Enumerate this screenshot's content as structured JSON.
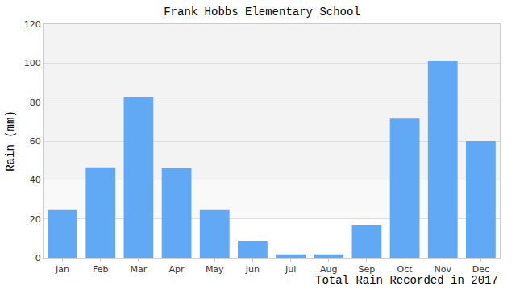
{
  "chart_data": {
    "type": "bar",
    "title": "Frank Hobbs Elementary School",
    "xlabel": "Total Rain Recorded in 2017",
    "ylabel": "Rain (mm)",
    "categories": [
      "Jan",
      "Feb",
      "Mar",
      "Apr",
      "May",
      "Jun",
      "Jul",
      "Aug",
      "Sep",
      "Oct",
      "Nov",
      "Dec"
    ],
    "values": [
      24.5,
      46.5,
      82.5,
      46,
      24.5,
      8.7,
      1.8,
      1.8,
      17,
      71.5,
      101,
      60
    ],
    "color": "#61a8f5",
    "ylim": [
      0,
      120
    ],
    "yticks": [
      0,
      20,
      40,
      60,
      80,
      100,
      120
    ],
    "grid": true
  }
}
